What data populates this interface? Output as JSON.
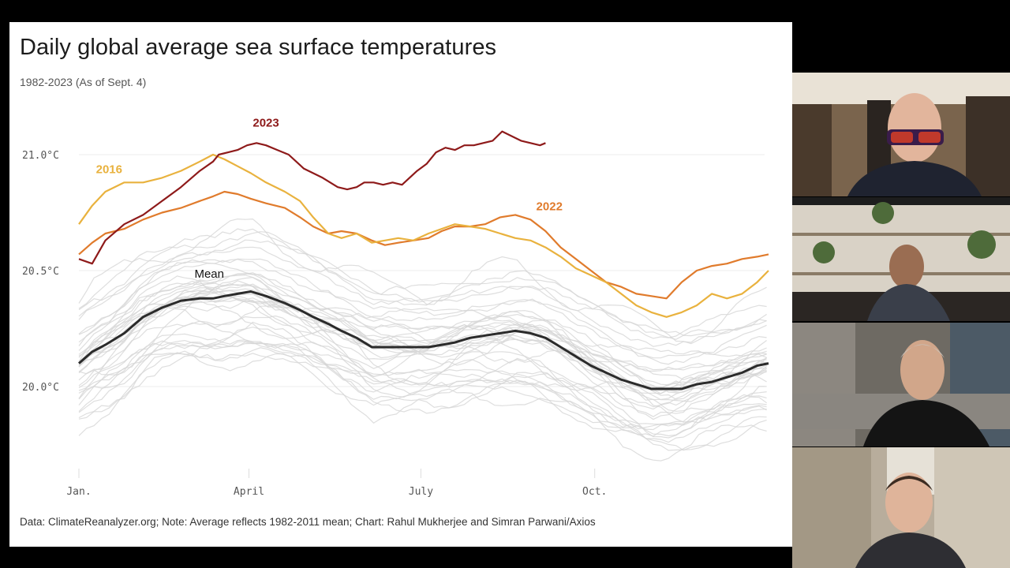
{
  "slide": {
    "title": "Daily global average sea surface temperatures",
    "subtitle": "1982-2023 (As of Sept. 4)",
    "source": "Data: ClimateReanalyzer.org; Note: Average reflects 1982-2011 mean; Chart: Rahul Mukherjee and Simran Parwani/Axios"
  },
  "chart_data": {
    "type": "line",
    "title": "Daily global average sea surface temperatures",
    "subtitle": "1982-2023 (As of Sept. 4)",
    "xlabel": "",
    "ylabel": "",
    "x_ticks": [
      "Jan.",
      "April",
      "July",
      "Oct."
    ],
    "x_tick_days": [
      1,
      91,
      182,
      274
    ],
    "y_ticks": [
      "21.0°C",
      "20.5°C",
      "20.0°C"
    ],
    "y_tick_values": [
      21.0,
      20.5,
      20.0
    ],
    "ylim": [
      19.7,
      21.25
    ],
    "xlim": [
      1,
      366
    ],
    "grid": true,
    "background_years_color": "#d6d6d6",
    "series": [
      {
        "name": "2023",
        "color": "#8e1a1a",
        "label_day": 100,
        "label_value": 21.12,
        "days": [
          1,
          8,
          15,
          25,
          35,
          45,
          55,
          65,
          72,
          75,
          80,
          85,
          90,
          95,
          100,
          106,
          112,
          120,
          125,
          130,
          138,
          143,
          148,
          152,
          157,
          162,
          167,
          172,
          180,
          185,
          190,
          195,
          200,
          205,
          210,
          215,
          220,
          225,
          230,
          235,
          240,
          245,
          248
        ],
        "values": [
          20.55,
          20.53,
          20.63,
          20.7,
          20.74,
          20.8,
          20.86,
          20.93,
          20.97,
          21.0,
          21.01,
          21.02,
          21.04,
          21.05,
          21.04,
          21.02,
          21.0,
          20.94,
          20.92,
          20.9,
          20.86,
          20.85,
          20.86,
          20.88,
          20.88,
          20.87,
          20.88,
          20.87,
          20.93,
          20.96,
          21.01,
          21.03,
          21.02,
          21.04,
          21.04,
          21.05,
          21.06,
          21.1,
          21.08,
          21.06,
          21.05,
          21.04,
          21.05
        ]
      },
      {
        "name": "2016",
        "color": "#e9b23e",
        "label_day": 17,
        "label_value": 20.92,
        "days": [
          1,
          8,
          15,
          25,
          35,
          45,
          55,
          65,
          72,
          78,
          85,
          92,
          100,
          110,
          118,
          125,
          133,
          140,
          148,
          156,
          163,
          170,
          178,
          186,
          193,
          200,
          208,
          216,
          224,
          232,
          240,
          248,
          256,
          264,
          272,
          280,
          288,
          296,
          304,
          312,
          320,
          328,
          336,
          344,
          352,
          360,
          366
        ],
        "values": [
          20.7,
          20.78,
          20.84,
          20.88,
          20.88,
          20.9,
          20.93,
          20.97,
          21.0,
          20.98,
          20.95,
          20.92,
          20.88,
          20.84,
          20.8,
          20.73,
          20.66,
          20.64,
          20.66,
          20.62,
          20.63,
          20.64,
          20.63,
          20.66,
          20.68,
          20.7,
          20.69,
          20.68,
          20.66,
          20.64,
          20.63,
          20.6,
          20.56,
          20.51,
          20.48,
          20.45,
          20.4,
          20.35,
          20.32,
          20.3,
          20.32,
          20.35,
          20.4,
          20.38,
          20.4,
          20.45,
          20.5
        ]
      },
      {
        "name": "2022",
        "color": "#e07b2c",
        "label_day": 250,
        "label_value": 20.76,
        "days": [
          1,
          8,
          15,
          25,
          35,
          45,
          55,
          65,
          72,
          78,
          85,
          92,
          100,
          110,
          118,
          125,
          133,
          140,
          148,
          156,
          163,
          170,
          178,
          186,
          193,
          200,
          208,
          216,
          224,
          232,
          240,
          248,
          256,
          264,
          272,
          280,
          288,
          296,
          304,
          312,
          320,
          328,
          336,
          344,
          352,
          360,
          366
        ],
        "values": [
          20.57,
          20.62,
          20.66,
          20.68,
          20.72,
          20.75,
          20.77,
          20.8,
          20.82,
          20.84,
          20.83,
          20.81,
          20.79,
          20.77,
          20.73,
          20.69,
          20.66,
          20.67,
          20.66,
          20.63,
          20.61,
          20.62,
          20.63,
          20.64,
          20.67,
          20.69,
          20.69,
          20.7,
          20.73,
          20.74,
          20.72,
          20.67,
          20.6,
          20.55,
          20.5,
          20.45,
          20.43,
          20.4,
          20.39,
          20.38,
          20.45,
          20.5,
          20.52,
          20.53,
          20.55,
          20.56,
          20.57
        ]
      },
      {
        "name": "Mean",
        "color": "#2b2b2b",
        "label_day": 70,
        "label_value": 20.47,
        "days": [
          1,
          8,
          15,
          25,
          35,
          45,
          55,
          65,
          72,
          78,
          85,
          92,
          100,
          110,
          118,
          125,
          133,
          140,
          148,
          156,
          163,
          170,
          178,
          186,
          193,
          200,
          208,
          216,
          224,
          232,
          240,
          248,
          256,
          264,
          272,
          280,
          288,
          296,
          304,
          312,
          320,
          328,
          336,
          344,
          352,
          360,
          366
        ],
        "values": [
          20.1,
          20.15,
          20.18,
          20.23,
          20.3,
          20.34,
          20.37,
          20.38,
          20.38,
          20.39,
          20.4,
          20.41,
          20.39,
          20.36,
          20.33,
          20.3,
          20.27,
          20.24,
          20.21,
          20.17,
          20.17,
          20.17,
          20.17,
          20.17,
          20.18,
          20.19,
          20.21,
          20.22,
          20.23,
          20.24,
          20.23,
          20.21,
          20.17,
          20.13,
          20.09,
          20.06,
          20.03,
          20.01,
          19.99,
          19.99,
          19.99,
          20.01,
          20.02,
          20.04,
          20.06,
          20.09,
          20.1
        ]
      }
    ]
  },
  "video_tiles": [
    {
      "name": "participant-1-video",
      "bg": "#6f5a45"
    },
    {
      "name": "participant-2-video",
      "bg": "#8a8177"
    },
    {
      "name": "participant-3-video",
      "bg": "#55524e"
    },
    {
      "name": "participant-4-video",
      "bg": "#8d8170"
    }
  ]
}
